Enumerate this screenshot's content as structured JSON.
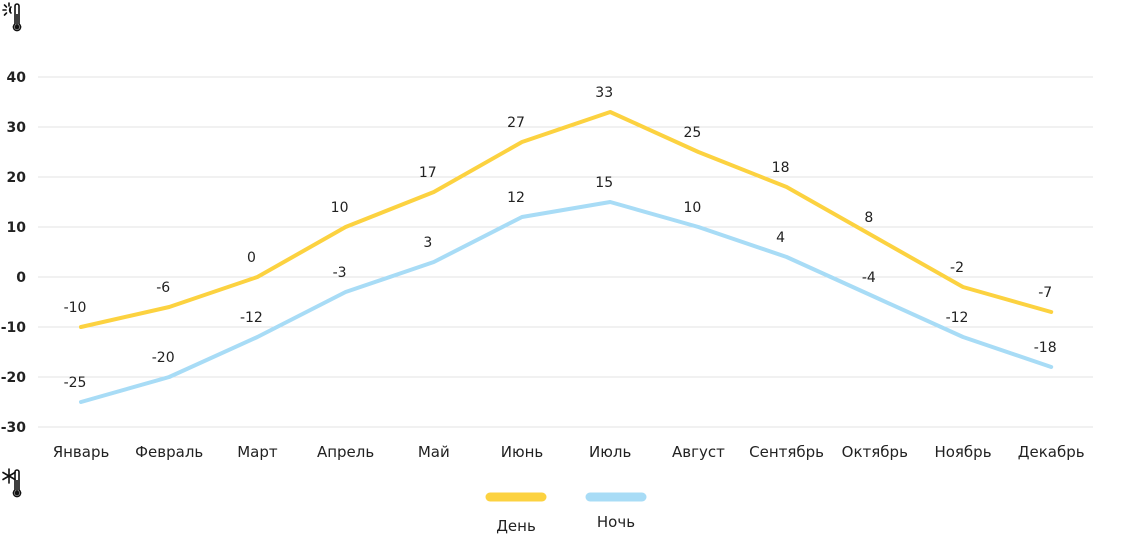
{
  "chart_data": {
    "type": "line",
    "categories": [
      "Январь",
      "Февраль",
      "Март",
      "Апрель",
      "Май",
      "Июнь",
      "Июль",
      "Август",
      "Сентябрь",
      "Октябрь",
      "Ноябрь",
      "Декабрь"
    ],
    "series": [
      {
        "name": "День",
        "color": "#fcd240",
        "values": [
          -10,
          -6,
          0,
          10,
          17,
          27,
          33,
          25,
          18,
          8,
          -2,
          -7
        ]
      },
      {
        "name": "Ночь",
        "color": "#a8dcf6",
        "values": [
          -25,
          -20,
          -12,
          -3,
          3,
          12,
          15,
          10,
          4,
          -4,
          -12,
          -18
        ]
      }
    ],
    "yticks": [
      -30,
      -20,
      -10,
      0,
      10,
      20,
      30,
      40
    ],
    "ylim": [
      -30,
      40
    ],
    "grid": true,
    "legend_position": "bottom-center"
  },
  "icons": {
    "day": "sun-thermometer-icon",
    "night": "snowflake-thermometer-icon"
  }
}
